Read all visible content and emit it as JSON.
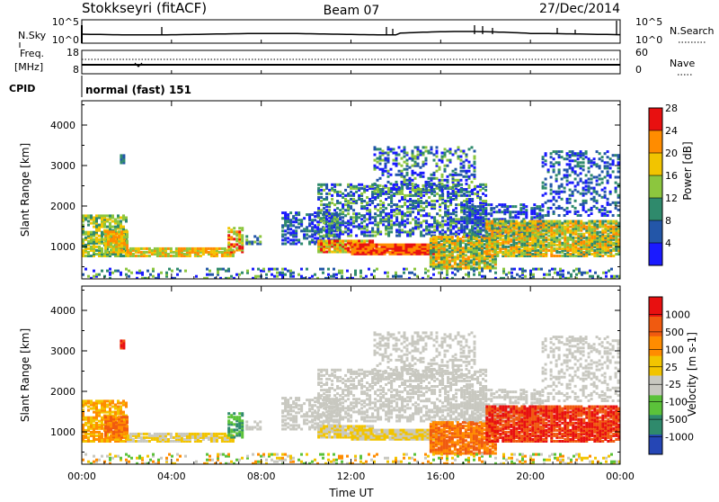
{
  "header": {
    "station": "Stokkseyri (fitACF)",
    "beam": "Beam 07",
    "date": "27/Dec/2014"
  },
  "noise_panel": {
    "left_label": "N.Sky",
    "right_label": "N.Search",
    "left_ticks": [
      "10^5",
      "10^0"
    ],
    "right_ticks": [
      "10^5",
      "10^0"
    ]
  },
  "freq_panel": {
    "left_label_1": "Freq.",
    "left_label_2": "[MHz]",
    "right_label": "Nave",
    "left_ticks": [
      "18",
      "8"
    ],
    "right_ticks": [
      "60",
      "0"
    ]
  },
  "cpid": {
    "label": "CPID",
    "mode": "normal (fast) 151"
  },
  "chart_data": [
    {
      "type": "heatmap",
      "name": "power",
      "ylabel": "Slant Range [km]",
      "ylim": [
        200,
        4600
      ],
      "y_ticks": [
        "1000",
        "2000",
        "3000",
        "4000"
      ],
      "colorbar": {
        "label": "Power [dB]",
        "ticks": [
          "4",
          "8",
          "12",
          "16",
          "20",
          "24",
          "28"
        ],
        "colors": [
          "#1a1aff",
          "#2356a8",
          "#2f8a6c",
          "#8cc63e",
          "#f2c400",
          "#ff8c00",
          "#e81010"
        ]
      }
    },
    {
      "type": "heatmap",
      "name": "velocity",
      "ylabel": "Slant Range [km]",
      "xlabel": "Time UT",
      "ylim": [
        200,
        4600
      ],
      "y_ticks": [
        "1000",
        "2000",
        "3000",
        "4000"
      ],
      "x_ticks": [
        "00:00",
        "04:00",
        "08:00",
        "12:00",
        "16:00",
        "20:00",
        "00:00"
      ],
      "colorbar": {
        "label": "Velocity [m s-1]",
        "ticks": [
          "1000",
          "500",
          "100",
          "25",
          "-25",
          "-100",
          "-500",
          "-1000"
        ],
        "colors": [
          "#2546b5",
          "#2f8a6c",
          "#5bc23a",
          "#c8c8c0",
          "#f2c400",
          "#ff8c00",
          "#f05a10",
          "#e81010"
        ]
      }
    }
  ]
}
